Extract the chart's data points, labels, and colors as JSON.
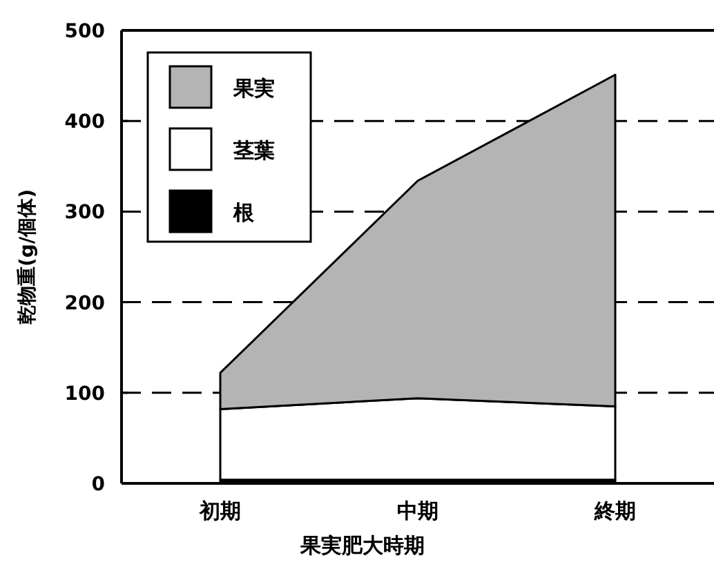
{
  "chart_data": {
    "type": "area",
    "stacked": true,
    "xlabel": "果実肥大時期",
    "ylabel": "乾物重(g/個体)",
    "categories": [
      "初期",
      "中期",
      "終期"
    ],
    "series": [
      {
        "name": "根",
        "color": "#000000",
        "values": [
          4,
          4,
          4
        ]
      },
      {
        "name": "茎葉",
        "color": "#ffffff",
        "values": [
          78,
          90,
          81
        ]
      },
      {
        "name": "果実",
        "color": "#b4b4b4",
        "values": [
          40,
          240,
          366
        ]
      }
    ],
    "ylim": [
      0,
      500
    ],
    "yticks": [
      0,
      100,
      200,
      300,
      400,
      500
    ],
    "grid": "y",
    "legend": "top left"
  }
}
